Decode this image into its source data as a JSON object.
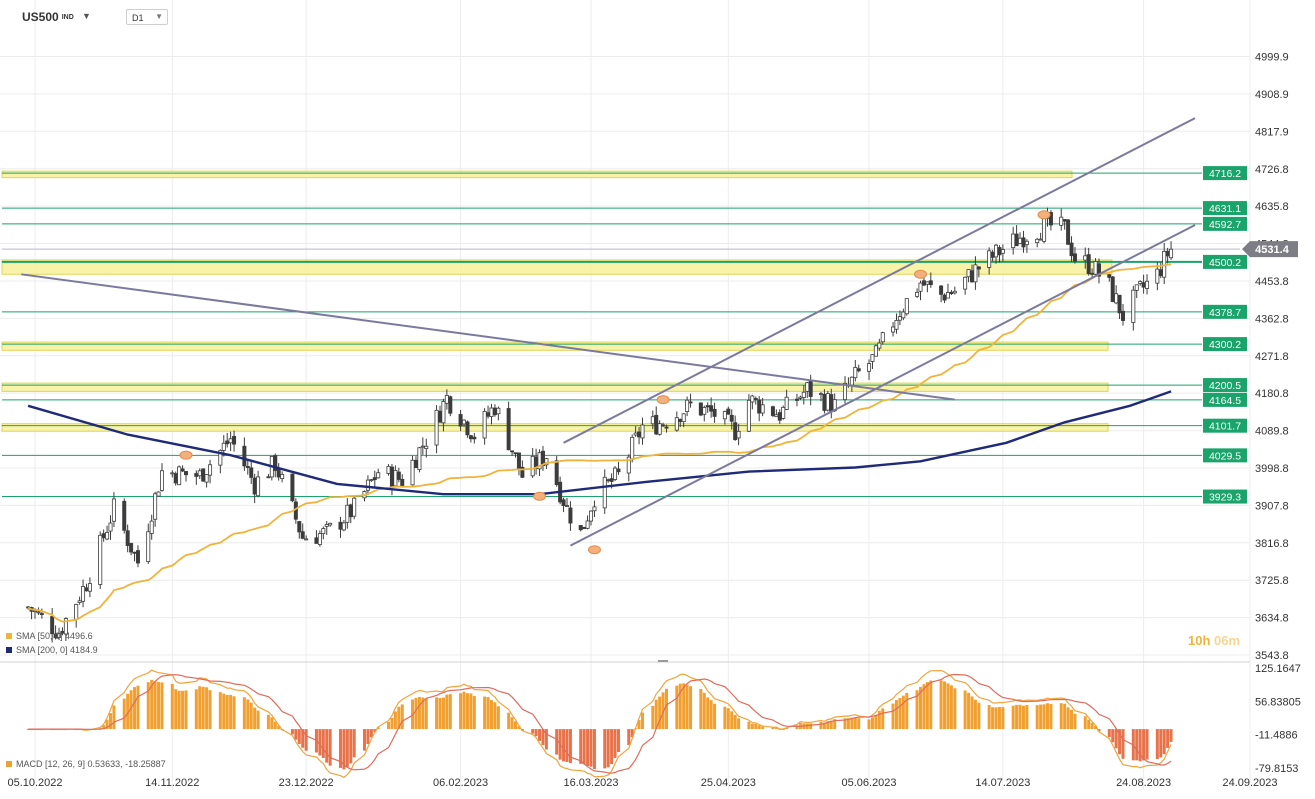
{
  "toolbar": {
    "symbol": "US500",
    "symbol_sub": "IND",
    "timeframe": "D1"
  },
  "timer": {
    "hours": "10h",
    "minutes": "06m"
  },
  "colors": {
    "green": "#1aa36a",
    "yellow_fill": "#f7f29a",
    "sma50": "#f0b43c",
    "sma200": "#1f2a78",
    "trend": "#7b7a9e",
    "up": "#ffffff",
    "down": "#3c3c3c",
    "macd_up": "#f1a030",
    "macd_down": "#e8734a"
  },
  "chart_data": [
    {
      "type": "candlestick",
      "title": "US500",
      "timeframe": "D1",
      "x_ticks": [
        "05.10.2022",
        "14.11.2022",
        "23.12.2022",
        "06.02.2023",
        "16.03.2023",
        "25.04.2023",
        "05.06.2023",
        "14.07.2023",
        "24.08.2023",
        "24.09.2023"
      ],
      "y_ticks": [
        "4999.9",
        "4908.9",
        "4817.9",
        "4726.8",
        "4635.8",
        "4544.8",
        "4453.8",
        "4362.8",
        "4271.8",
        "4180.8",
        "4089.8",
        "3998.8",
        "3907.8",
        "3816.8",
        "3725.8",
        "3634.8",
        "3543.8"
      ],
      "last_price": "4531.4",
      "levels": [
        "4716.2",
        "4631.1",
        "4592.7",
        "4500.2",
        "4378.7",
        "4300.2",
        "4200.5",
        "4164.5",
        "4101.7",
        "4029.5",
        "3929.3"
      ],
      "series": [
        {
          "name": "SMA [50, 0]",
          "value": "4496.6"
        },
        {
          "name": "SMA [200, 0]",
          "value": "4184.9"
        }
      ],
      "price_path": [
        [
          "2022-10-03",
          3660
        ],
        [
          "2022-10-12",
          3600
        ],
        [
          "2022-10-20",
          3720
        ],
        [
          "2022-10-28",
          3900
        ],
        [
          "2022-11-04",
          3770
        ],
        [
          "2022-11-11",
          3990
        ],
        [
          "2022-11-22",
          3980
        ],
        [
          "2022-12-01",
          4070
        ],
        [
          "2022-12-08",
          3960
        ],
        [
          "2022-12-14",
          4010
        ],
        [
          "2022-12-22",
          3830
        ],
        [
          "2022-12-29",
          3840
        ],
        [
          "2023-01-06",
          3900
        ],
        [
          "2023-01-13",
          3990
        ],
        [
          "2023-01-20",
          3970
        ],
        [
          "2023-01-27",
          4070
        ],
        [
          "2023-02-02",
          4170
        ],
        [
          "2023-02-10",
          4080
        ],
        [
          "2023-02-16",
          4150
        ],
        [
          "2023-02-24",
          3980
        ],
        [
          "2023-03-03",
          4030
        ],
        [
          "2023-03-09",
          3900
        ],
        [
          "2023-03-13",
          3840
        ],
        [
          "2023-03-17",
          3930
        ],
        [
          "2023-03-24",
          3980
        ],
        [
          "2023-03-31",
          4100
        ],
        [
          "2023-04-06",
          4110
        ],
        [
          "2023-04-14",
          4150
        ],
        [
          "2023-04-21",
          4130
        ],
        [
          "2023-04-27",
          4090
        ],
        [
          "2023-05-01",
          4165
        ],
        [
          "2023-05-10",
          4130
        ],
        [
          "2023-05-18",
          4190
        ],
        [
          "2023-05-26",
          4150
        ],
        [
          "2023-06-01",
          4220
        ],
        [
          "2023-06-07",
          4270
        ],
        [
          "2023-06-13",
          4370
        ],
        [
          "2023-06-20",
          4450
        ],
        [
          "2023-06-26",
          4420
        ],
        [
          "2023-06-30",
          4430
        ],
        [
          "2023-07-06",
          4480
        ],
        [
          "2023-07-12",
          4520
        ],
        [
          "2023-07-19",
          4560
        ],
        [
          "2023-07-27",
          4590
        ],
        [
          "2023-08-01",
          4580
        ],
        [
          "2023-08-04",
          4510
        ],
        [
          "2023-08-09",
          4490
        ],
        [
          "2023-08-14",
          4440
        ],
        [
          "2023-08-18",
          4370
        ],
        [
          "2023-08-23",
          4430
        ],
        [
          "2023-08-28",
          4470
        ],
        [
          "2023-08-31",
          4520
        ],
        [
          "2023-09-01",
          4531
        ]
      ]
    },
    {
      "type": "bar",
      "title": "MACD [12, 26, 9]",
      "series": [
        {
          "name": "MACD",
          "value": "0.53633"
        },
        {
          "name": "Signal",
          "value": "-18.25887"
        }
      ],
      "y_ticks": [
        "125.1647",
        "56.83805",
        "-11.4886",
        "-79.8153"
      ]
    }
  ]
}
